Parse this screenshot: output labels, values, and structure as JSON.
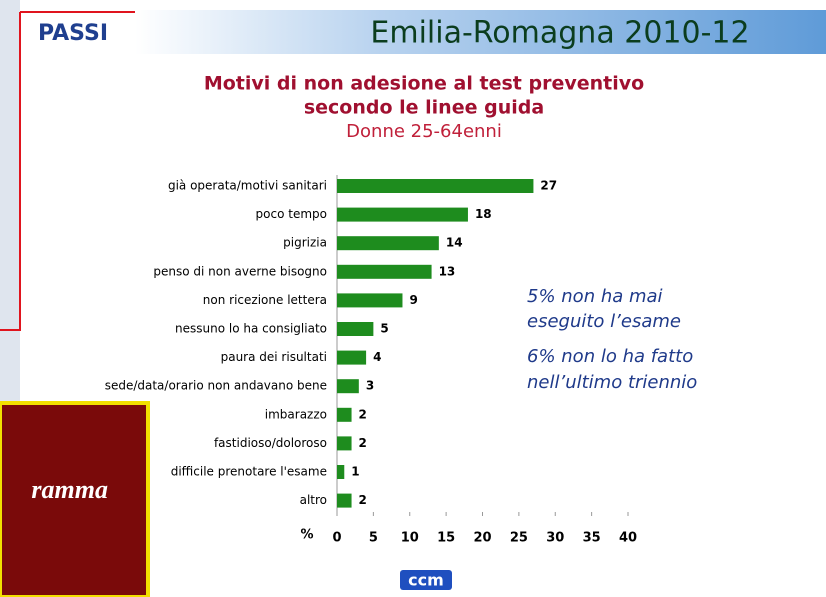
{
  "header": {
    "logo": "PASSI",
    "title": "Emilia-Romagna 2010-12"
  },
  "chart_data": {
    "type": "bar",
    "orientation": "horizontal",
    "title": "Motivi di non adesione al test preventivo",
    "title_line2": "secondo le linee guida",
    "subtitle": "Donne 25-64enni",
    "categories": [
      "già operata/motivi sanitari",
      "poco tempo",
      "pigrizia",
      "penso di non averne bisogno",
      "non ricezione lettera",
      "nessuno lo ha consigliato",
      "paura dei risultati",
      "sede/data/orario non andavano bene",
      "imbarazzo",
      "fastidioso/doloroso",
      "difficile prenotare l'esame",
      "altro"
    ],
    "values": [
      27,
      18,
      14,
      13,
      9,
      5,
      4,
      3,
      2,
      2,
      1,
      2
    ],
    "color": "#1e8c1e",
    "x_label": "%",
    "xlim": [
      0,
      40
    ],
    "xticks": [
      0,
      5,
      10,
      15,
      20,
      25,
      30,
      35,
      40
    ],
    "annotations": [
      "5% non ha mai",
      "eseguito l’esame",
      " 6% non lo ha fatto",
      "nell’ultimo triennio"
    ]
  },
  "overlay": {
    "text": "ramma"
  },
  "footer": {
    "logo": "ccm"
  }
}
